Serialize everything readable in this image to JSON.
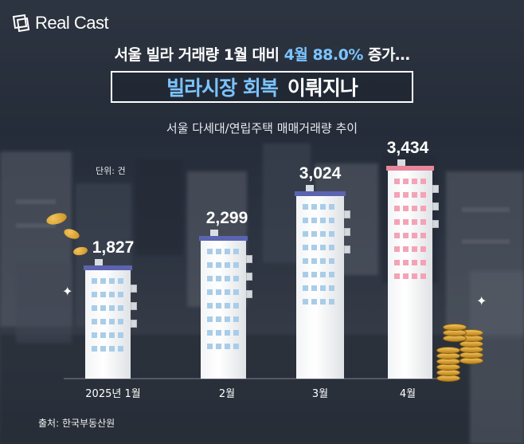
{
  "brand": {
    "logo_text": "Real Cast"
  },
  "headline": {
    "part1": "서울 빌라 거래량 1월 대비",
    "highlight": "4월 88.0%",
    "part2": "증가…"
  },
  "title": {
    "highlight": "빌라시장 회복",
    "rest": "이뤄지나"
  },
  "chart_data": {
    "type": "bar",
    "title": "서울 다세대/연립주택 매매거래량 추이",
    "unit_label": "단위: 건",
    "categories": [
      "2025년 1월",
      "2월",
      "3월",
      "4월"
    ],
    "values": [
      1827,
      2299,
      3024,
      3434
    ],
    "value_labels": [
      "1,827",
      "2,299",
      "3,024",
      "3,434"
    ],
    "xlabel": "",
    "ylabel": "",
    "ylim": [
      0,
      3600
    ],
    "grid": false,
    "colors": {
      "bar": "#ffffff",
      "roof_blue": "#5a64b0",
      "roof_pink": "#e8869a",
      "window_blue": "#a9cde8",
      "window_pink": "#f4a3b7"
    }
  },
  "source": "출처: 한국부동산원",
  "icons": [
    "building-icon",
    "coin-icon",
    "sparkle-icon",
    "logo-icon"
  ]
}
